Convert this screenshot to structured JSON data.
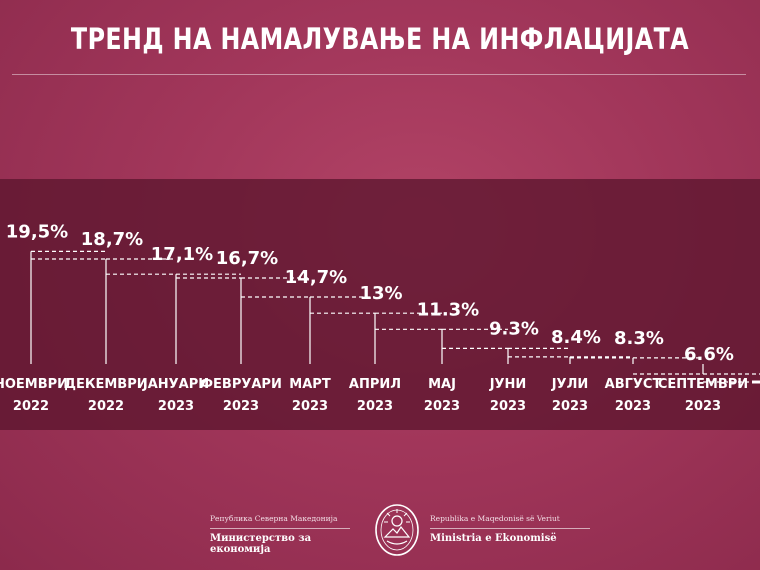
{
  "title": "ТРЕНД НА НАМАЛУВАЊЕ НА ИНФЛАЦИЈАТА",
  "chart_data": {
    "type": "line",
    "categories": [
      [
        "НОЕМВРИ",
        "2022"
      ],
      [
        "ДЕКЕМВРИ",
        "2022"
      ],
      [
        "ЈАНУАРИ",
        "2023"
      ],
      [
        "ФЕВРУАРИ",
        "2023"
      ],
      [
        "МАРТ",
        "2023"
      ],
      [
        "АПРИЛ",
        "2023"
      ],
      [
        "МАЈ",
        "2023"
      ],
      [
        "ЈУНИ",
        "2023"
      ],
      [
        "ЈУЛИ",
        "2023"
      ],
      [
        "АВГУСТ",
        "2023"
      ],
      [
        "СЕПТЕМВРИ",
        "2023"
      ]
    ],
    "values": [
      19.5,
      18.7,
      17.1,
      16.7,
      14.7,
      13,
      11.3,
      9.3,
      8.4,
      8.3,
      6.6
    ],
    "value_labels": [
      "19,5%",
      "18,7%",
      "17,1%",
      "16,7%",
      "14,7%",
      "13%",
      "11.3%",
      "9.3%",
      "8.4%",
      "8.3%",
      "6.6%"
    ],
    "style": "step"
  },
  "footer": {
    "left_small": "Република Северна Македонија",
    "left_big": "Министерство за економија",
    "right_small": "Republika e Maqedonisë së Veriut",
    "right_big": "Ministria e Ekonomisë"
  },
  "emblem_icon": "state-emblem-icon"
}
